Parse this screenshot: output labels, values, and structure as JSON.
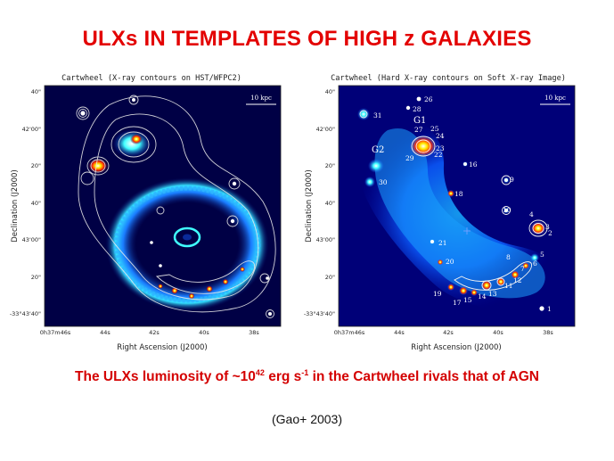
{
  "title": "ULXs IN TEMPLATES OF HIGH z GALAXIES",
  "caption": {
    "prefix": "The ULXs luminosity of ~10",
    "exp1": "42",
    "mid": " erg s",
    "exp2": "-1",
    "suffix": " in the Cartwheel rivals that of AGN"
  },
  "citation": "(Gao+ 2003)",
  "colors": {
    "title": "#e30000",
    "caption": "#d40000"
  },
  "left_panel": {
    "title": "Cartwheel (X-ray contours on HST/WFPC2)",
    "scale_label": "10 kpc",
    "xlabel": "Right Ascension (J2000)",
    "ylabel": "Declination (J2000)",
    "x_ticks": [
      "0h37m46s",
      "44s",
      "42s",
      "40s",
      "38s"
    ],
    "y_ticks": [
      "40\"",
      "42'00\"",
      "20\"",
      "40\"",
      "43'00\"",
      "20\"",
      "-33°43'40\""
    ]
  },
  "right_panel": {
    "title": "Cartwheel (Hard X-ray contours on Soft X-ray Image)",
    "scale_label": "10 kpc",
    "xlabel": "Right Ascension (J2000)",
    "ylabel": "Declination (J2000)",
    "x_ticks": [
      "0h37m46s",
      "44s",
      "42s",
      "40s",
      "38s"
    ],
    "y_ticks": [
      "40\"",
      "42'00\"",
      "20\"",
      "40\"",
      "43'00\"",
      "20\"",
      "-33°43'40\""
    ],
    "group_labels": [
      "G1",
      "G2"
    ],
    "source_labels": [
      "1",
      "2",
      "3",
      "4",
      "5",
      "6",
      "7",
      "8",
      "9",
      "10",
      "11",
      "12",
      "13",
      "14",
      "15",
      "16",
      "17",
      "18",
      "19",
      "20",
      "21",
      "22",
      "23",
      "24",
      "25",
      "26",
      "27",
      "28",
      "29",
      "30",
      "31"
    ]
  }
}
